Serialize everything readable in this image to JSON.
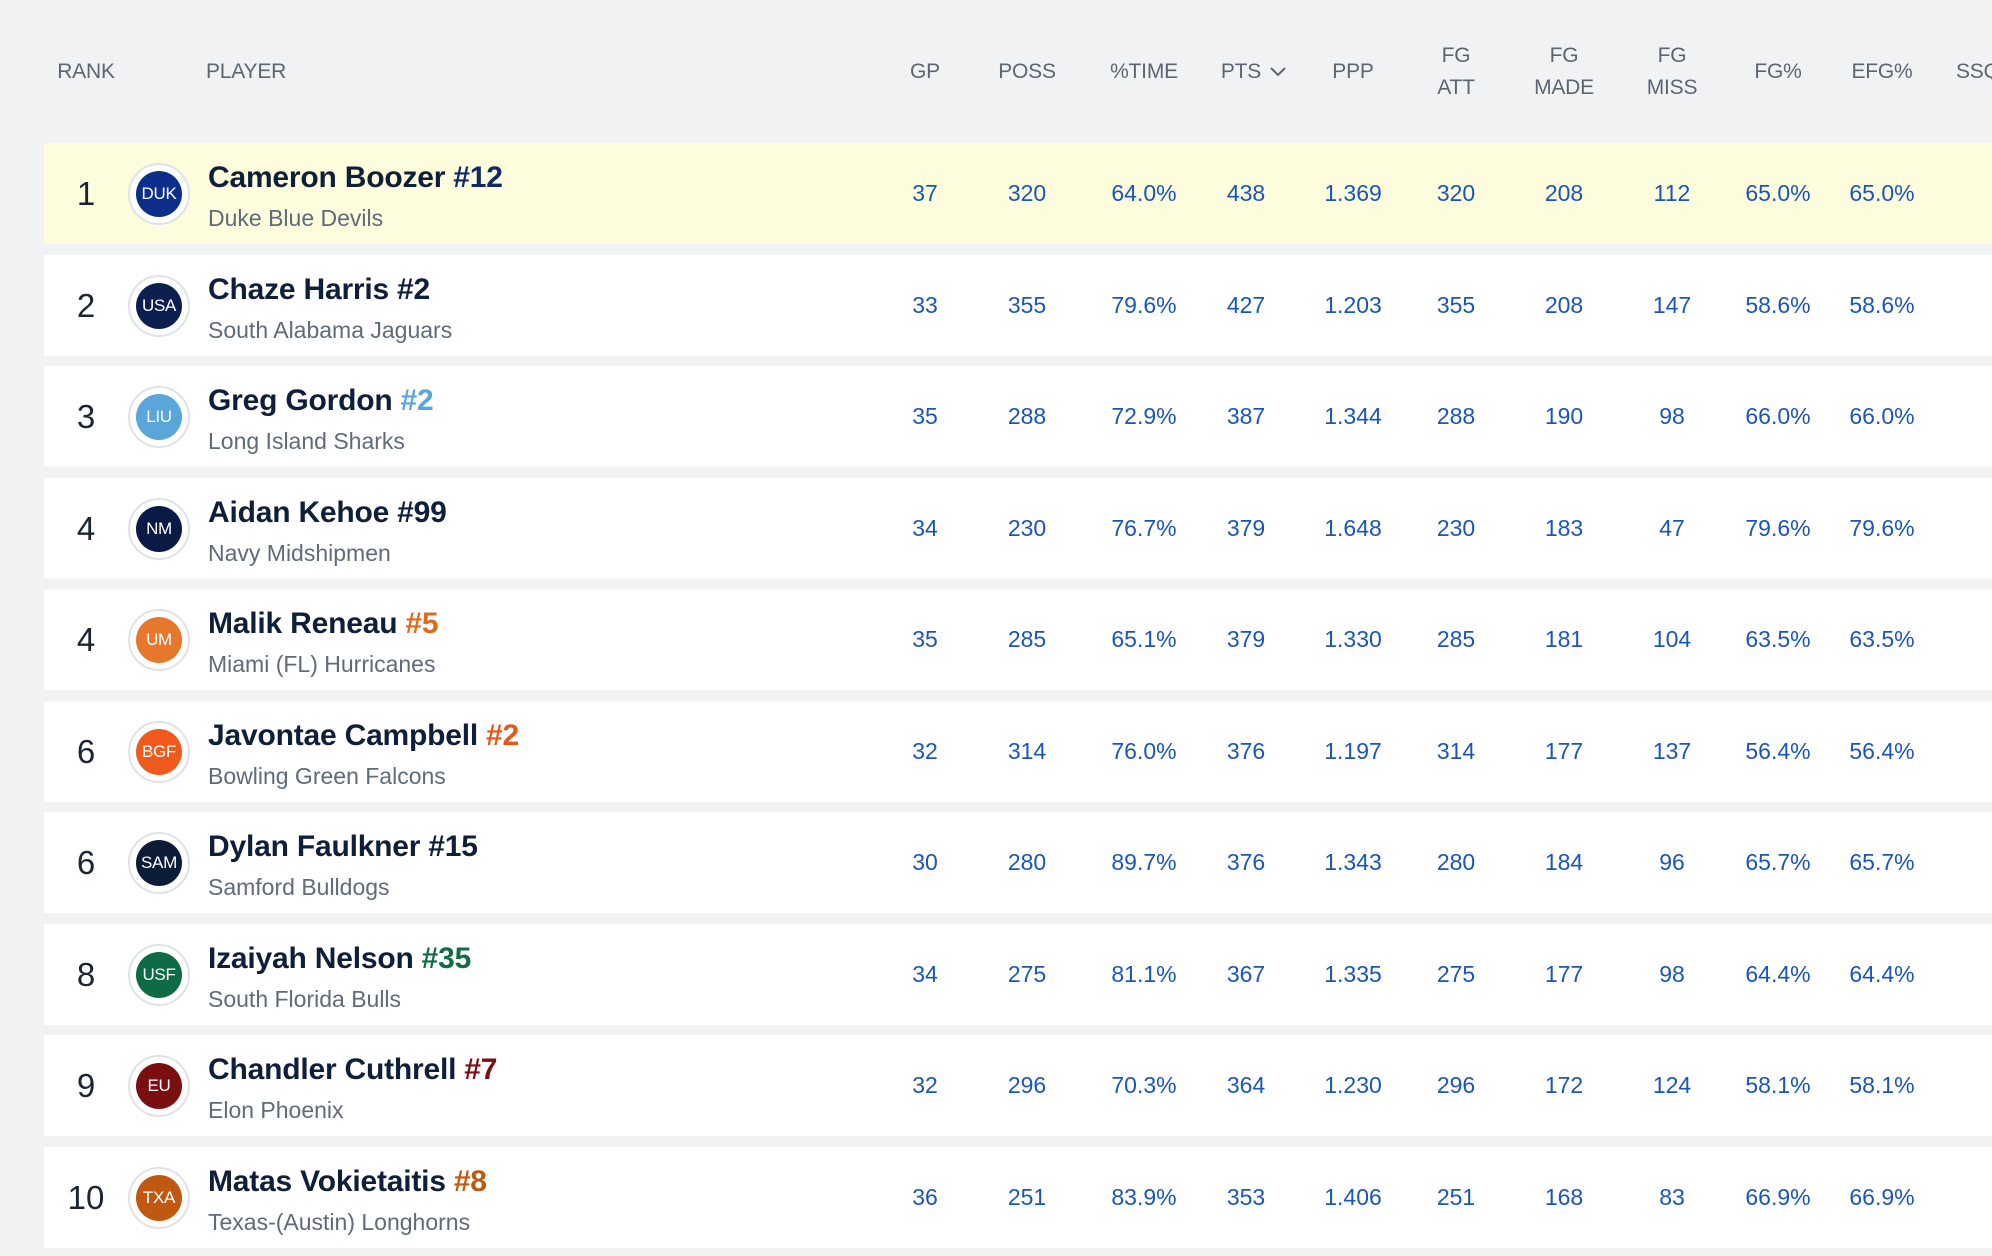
{
  "table": {
    "headers": {
      "rank": "RANK",
      "player": "PLAYER",
      "gp": "GP",
      "poss": "POSS",
      "time": "%TIME",
      "pts": "PTS",
      "ppp": "PPP",
      "fg_att": [
        "FG",
        "ATT"
      ],
      "fg_made": [
        "FG",
        "MADE"
      ],
      "fg_miss": [
        "FG",
        "MISS"
      ],
      "fg_pct": "FG%",
      "efg_pct": "EFG%",
      "ssq": "SSQ"
    },
    "sort_icon": "caret-down-icon",
    "rows": [
      {
        "rank": "1",
        "name": "Cameron Boozer",
        "number": "#12",
        "team": "Duke Blue Devils",
        "abbr": "DUK",
        "logo_color": "#0b2f8a",
        "number_color": "#0f2a66",
        "gp": "37",
        "poss": "320",
        "time": "64.0%",
        "pts": "438",
        "ppp": "1.369",
        "fg_att": "320",
        "fg_made": "208",
        "fg_miss": "112",
        "fg_pct": "65.0%",
        "efg_pct": "65.0%",
        "ssq": "-",
        "highlight": true
      },
      {
        "rank": "2",
        "name": "Chaze Harris",
        "number": "#2",
        "team": "South Alabama Jaguars",
        "abbr": "USA",
        "logo_color": "#0d1f4f",
        "number_color": "#0f1f3a",
        "gp": "33",
        "poss": "355",
        "time": "79.6%",
        "pts": "427",
        "ppp": "1.203",
        "fg_att": "355",
        "fg_made": "208",
        "fg_miss": "147",
        "fg_pct": "58.6%",
        "efg_pct": "58.6%",
        "ssq": "-",
        "highlight": false
      },
      {
        "rank": "3",
        "name": "Greg Gordon",
        "number": "#2",
        "team": "Long Island Sharks",
        "abbr": "LIU",
        "logo_color": "#5aa6db",
        "number_color": "#5aa6db",
        "gp": "35",
        "poss": "288",
        "time": "72.9%",
        "pts": "387",
        "ppp": "1.344",
        "fg_att": "288",
        "fg_made": "190",
        "fg_miss": "98",
        "fg_pct": "66.0%",
        "efg_pct": "66.0%",
        "ssq": "-",
        "highlight": false
      },
      {
        "rank": "4",
        "name": "Aidan Kehoe",
        "number": "#99",
        "team": "Navy Midshipmen",
        "abbr": "NM",
        "logo_color": "#0a1a44",
        "number_color": "#0f1f3a",
        "gp": "34",
        "poss": "230",
        "time": "76.7%",
        "pts": "379",
        "ppp": "1.648",
        "fg_att": "230",
        "fg_made": "183",
        "fg_miss": "47",
        "fg_pct": "79.6%",
        "efg_pct": "79.6%",
        "ssq": "-",
        "highlight": false
      },
      {
        "rank": "4",
        "name": "Malik Reneau",
        "number": "#5",
        "team": "Miami (FL) Hurricanes",
        "abbr": "UM",
        "logo_color": "#e7772a",
        "number_color": "#e06a1b",
        "gp": "35",
        "poss": "285",
        "time": "65.1%",
        "pts": "379",
        "ppp": "1.330",
        "fg_att": "285",
        "fg_made": "181",
        "fg_miss": "104",
        "fg_pct": "63.5%",
        "efg_pct": "63.5%",
        "ssq": "-",
        "highlight": false
      },
      {
        "rank": "6",
        "name": "Javontae Campbell",
        "number": "#2",
        "team": "Bowling Green Falcons",
        "abbr": "BGF",
        "logo_color": "#f05a1c",
        "number_color": "#e8561a",
        "gp": "32",
        "poss": "314",
        "time": "76.0%",
        "pts": "376",
        "ppp": "1.197",
        "fg_att": "314",
        "fg_made": "177",
        "fg_miss": "137",
        "fg_pct": "56.4%",
        "efg_pct": "56.4%",
        "ssq": "-",
        "highlight": false
      },
      {
        "rank": "6",
        "name": "Dylan Faulkner",
        "number": "#15",
        "team": "Samford Bulldogs",
        "abbr": "SAM",
        "logo_color": "#0d1c36",
        "number_color": "#0f1f3a",
        "gp": "30",
        "poss": "280",
        "time": "89.7%",
        "pts": "376",
        "ppp": "1.343",
        "fg_att": "280",
        "fg_made": "184",
        "fg_miss": "96",
        "fg_pct": "65.7%",
        "efg_pct": "65.7%",
        "ssq": "-",
        "highlight": false
      },
      {
        "rank": "8",
        "name": "Izaiyah Nelson",
        "number": "#35",
        "team": "South Florida Bulls",
        "abbr": "USF",
        "logo_color": "#0f6a46",
        "number_color": "#136b47",
        "gp": "34",
        "poss": "275",
        "time": "81.1%",
        "pts": "367",
        "ppp": "1.335",
        "fg_att": "275",
        "fg_made": "177",
        "fg_miss": "98",
        "fg_pct": "64.4%",
        "efg_pct": "64.4%",
        "ssq": "-",
        "highlight": false
      },
      {
        "rank": "9",
        "name": "Chandler Cuthrell",
        "number": "#7",
        "team": "Elon Phoenix",
        "abbr": "EU",
        "logo_color": "#7a0f12",
        "number_color": "#7a1014",
        "gp": "32",
        "poss": "296",
        "time": "70.3%",
        "pts": "364",
        "ppp": "1.230",
        "fg_att": "296",
        "fg_made": "172",
        "fg_miss": "124",
        "fg_pct": "58.1%",
        "efg_pct": "58.1%",
        "ssq": "-",
        "highlight": false
      },
      {
        "rank": "10",
        "name": "Matas Vokietaitis",
        "number": "#8",
        "team": "Texas-(Austin) Longhorns",
        "abbr": "TXA",
        "logo_color": "#c0580f",
        "number_color": "#c0580f",
        "gp": "36",
        "poss": "251",
        "time": "83.9%",
        "pts": "353",
        "ppp": "1.406",
        "fg_att": "251",
        "fg_made": "168",
        "fg_miss": "83",
        "fg_pct": "66.9%",
        "efg_pct": "66.9%",
        "ssq": "-",
        "highlight": false
      }
    ]
  }
}
